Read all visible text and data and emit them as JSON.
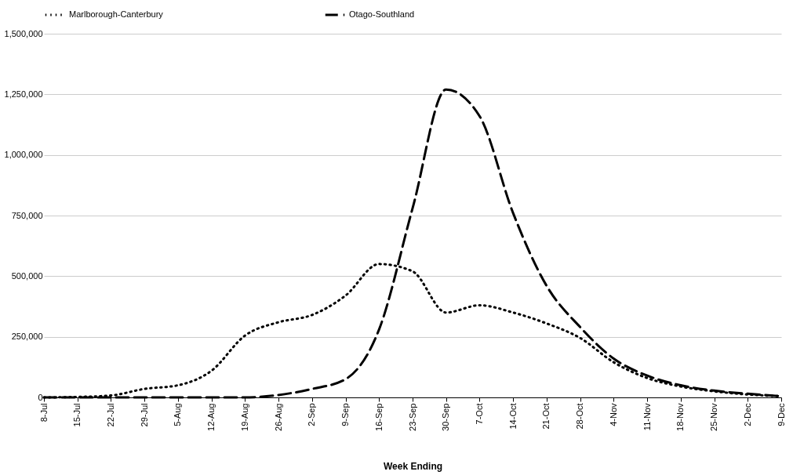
{
  "chart_data": {
    "type": "line",
    "xlabel": "Week Ending",
    "categories": [
      "8-Jul",
      "15-Jul",
      "22-Jul",
      "29-Jul",
      "5-Aug",
      "12-Aug",
      "19-Aug",
      "26-Aug",
      "2-Sep",
      "9-Sep",
      "16-Sep",
      "23-Sep",
      "30-Sep",
      "7-Oct",
      "14-Oct",
      "21-Oct",
      "28-Oct",
      "4-Nov",
      "11-Nov",
      "18-Nov",
      "25-Nov",
      "2-Dec",
      "9-Dec"
    ],
    "series": [
      {
        "name": "Marlborough-Canterbury",
        "color": "#000000",
        "line_style": "dotted",
        "values": [
          0,
          2000,
          8000,
          35000,
          50000,
          110000,
          255000,
          310000,
          340000,
          420000,
          550000,
          520000,
          350000,
          380000,
          350000,
          305000,
          245000,
          145000,
          80000,
          45000,
          25000,
          12000,
          5000
        ]
      },
      {
        "name": "Otago-Southland",
        "color": "#000000",
        "line_style": "dashed",
        "values": [
          0,
          0,
          0,
          0,
          0,
          0,
          0,
          10000,
          35000,
          75000,
          280000,
          780000,
          1270000,
          1160000,
          760000,
          460000,
          290000,
          160000,
          90000,
          50000,
          28000,
          15000,
          5000
        ]
      }
    ],
    "ylim": [
      0,
      1500000
    ],
    "yticks": [
      0,
      {
        "value": 250000,
        "label": "250,000"
      },
      {
        "value": 500000,
        "label": "500,000"
      },
      {
        "value": 750000,
        "label": "750,000"
      },
      {
        "value": 1000000,
        "label": "1,000,000"
      },
      {
        "value": 1250000,
        "label": "1,250,000"
      },
      {
        "value": 1500000,
        "label": "1,500,000"
      }
    ],
    "grid": "y",
    "legend": "top",
    "marker": "none"
  }
}
